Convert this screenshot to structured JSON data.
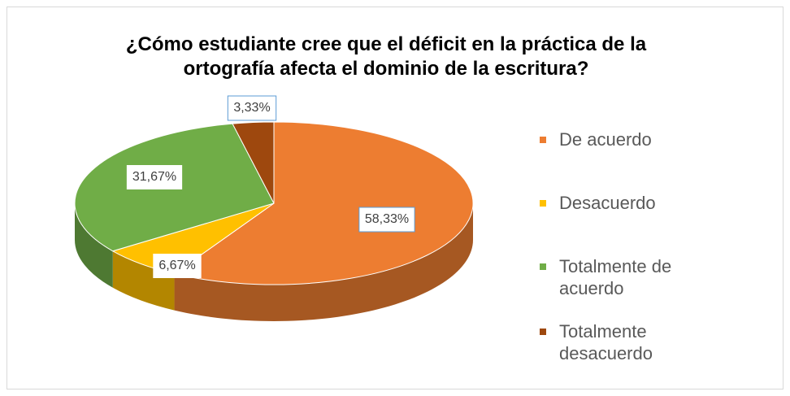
{
  "chart_data": {
    "type": "pie",
    "title": "¿Cómo estudiante cree que el déficit en la práctica de la ortografía afecta el dominio de la escritura?",
    "categories": [
      "De acuerdo",
      "Desacuerdo",
      "Totalmente de acuerdo",
      "Totalmente desacuerdo"
    ],
    "values": [
      58.33,
      6.67,
      31.67,
      3.33
    ],
    "value_labels": [
      "58,33%",
      "6,67%",
      "31,67%",
      "3,33%"
    ],
    "colors": [
      "#ed7d31",
      "#ffc000",
      "#70ad47",
      "#9e480e"
    ],
    "legend": "right"
  }
}
